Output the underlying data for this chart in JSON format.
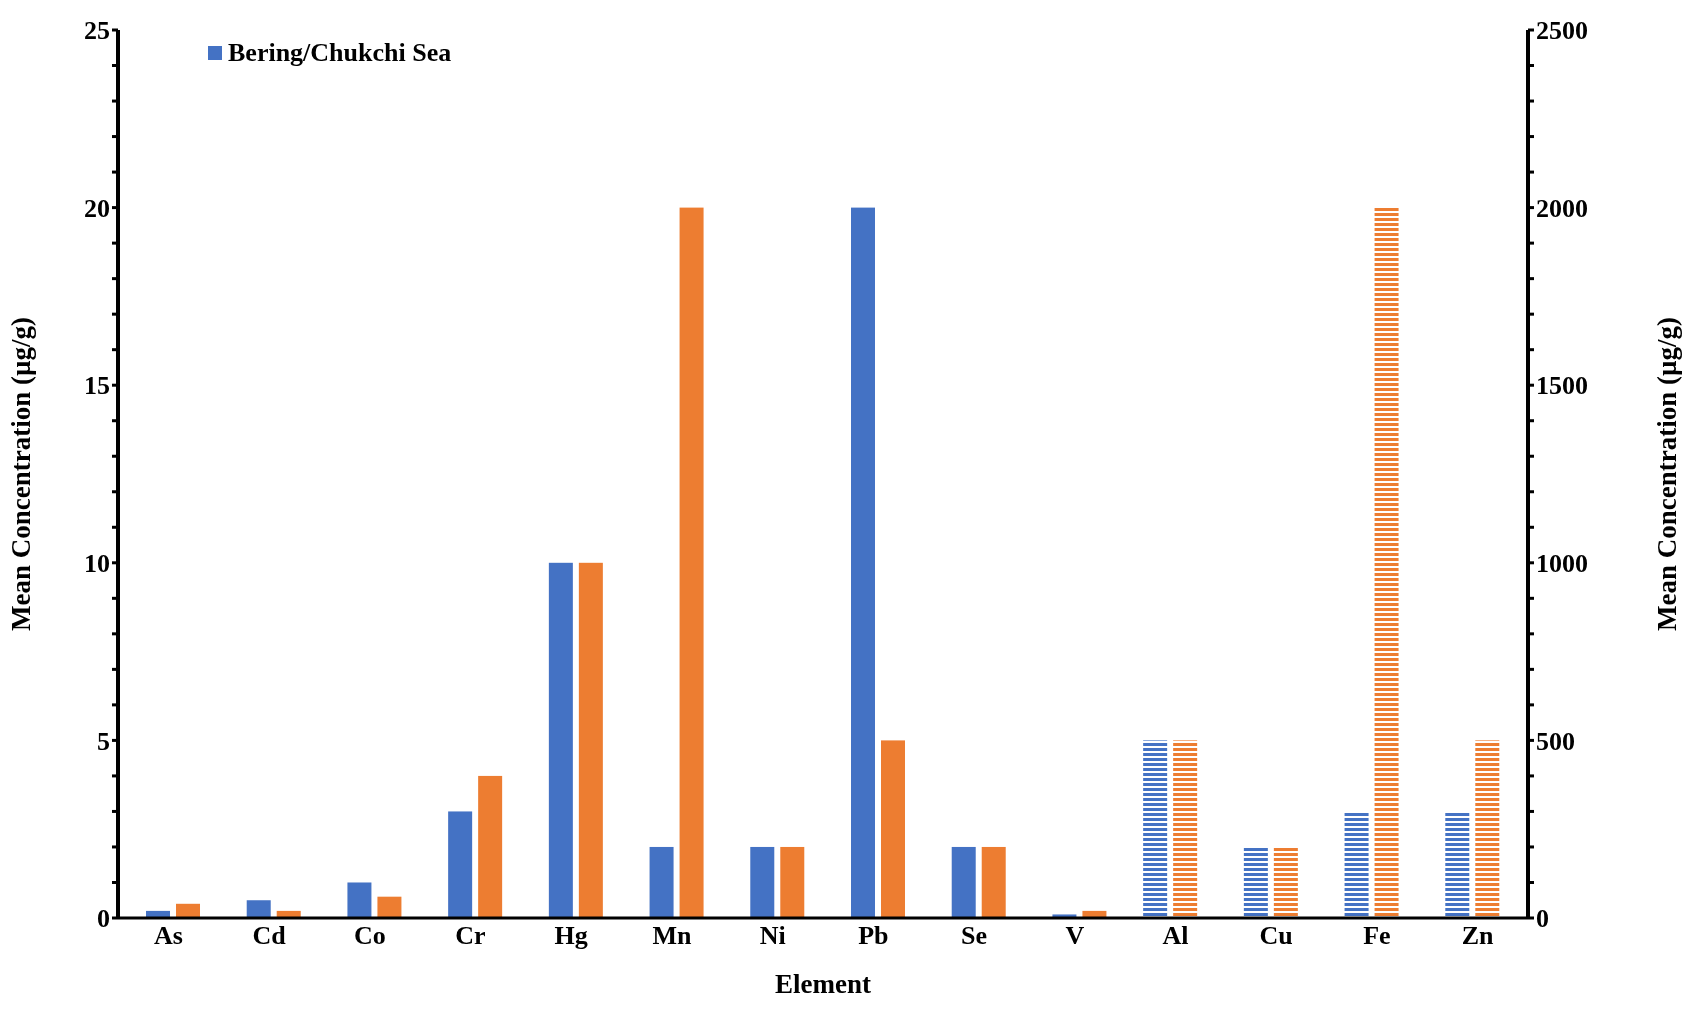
{
  "chart_data": {
    "type": "bar",
    "xlabel": "Element",
    "ylabel": "Mean Concentration (µg/g)",
    "y2label": "Mean Concentration (µg/g)",
    "categories": [
      "As",
      "Cd",
      "Co",
      "Cr",
      "Hg",
      "Mn",
      "Ni",
      "Pb",
      "Se",
      "V",
      "Al",
      "Cu",
      "Fe",
      "Zn"
    ],
    "series": [
      {
        "name": "Bering/Chukchi Sea",
        "color": "#4472c4",
        "values": [
          0.2,
          0.5,
          1,
          3,
          10,
          2,
          2,
          20,
          2,
          0.1,
          null,
          null,
          null,
          null
        ]
      },
      {
        "color": "#ed7d31",
        "values": [
          0.4,
          0.2,
          0.6,
          4,
          10,
          20,
          2,
          5,
          2,
          0.2,
          null,
          null,
          null,
          null
        ]
      },
      {
        "color": "#4472c4",
        "axis": "y2",
        "values": [
          null,
          null,
          null,
          null,
          null,
          null,
          null,
          null,
          null,
          null,
          500,
          200,
          300,
          300
        ]
      },
      {
        "color": "#ed7d31",
        "axis": "y2",
        "values": [
          null,
          null,
          null,
          null,
          null,
          null,
          null,
          null,
          null,
          null,
          500,
          200,
          2000,
          500
        ]
      }
    ],
    "ylim": [
      0,
      25
    ],
    "yticks": [
      0,
      {
        "value": 1,
        "label": null
      },
      {
        "value": 2,
        "label": null
      },
      {
        "value": 3,
        "label": null
      },
      {
        "value": 4,
        "label": null
      },
      5,
      {
        "value": 6,
        "label": null
      },
      {
        "value": 7,
        "label": null
      },
      {
        "value": 8,
        "label": null
      },
      {
        "value": 9,
        "label": null
      },
      10,
      {
        "value": 11,
        "label": null
      },
      {
        "value": 12,
        "label": null
      },
      {
        "value": 13,
        "label": null
      },
      {
        "value": 14,
        "label": null
      },
      15,
      {
        "value": 16,
        "label": null
      },
      {
        "value": 17,
        "label": null
      },
      {
        "value": 18,
        "label": null
      },
      {
        "value": 19,
        "label": null
      },
      20,
      {
        "value": 21,
        "label": null
      },
      {
        "value": 22,
        "label": null
      },
      {
        "value": 23,
        "label": null
      },
      {
        "value": 24,
        "label": null
      },
      25
    ],
    "y2lim": [
      0,
      2500
    ],
    "y2ticks": [
      0,
      {
        "value": 100,
        "label": null
      },
      {
        "value": 200,
        "label": null
      },
      {
        "value": 300,
        "label": null
      },
      {
        "value": 400,
        "label": null
      },
      500,
      {
        "value": 600,
        "label": null
      },
      {
        "value": 700,
        "label": null
      },
      {
        "value": 800,
        "label": null
      },
      {
        "value": 900,
        "label": null
      },
      1000,
      {
        "value": 1100,
        "label": null
      },
      {
        "value": 1200,
        "label": null
      },
      {
        "value": 1300,
        "label": null
      },
      {
        "value": 1400,
        "label": null
      },
      1500,
      {
        "value": 1600,
        "label": null
      },
      {
        "value": 1700,
        "label": null
      },
      {
        "value": 1800,
        "label": null
      },
      {
        "value": 1900,
        "label": null
      },
      2000,
      {
        "value": 2100,
        "label": null
      },
      {
        "value": 2200,
        "label": null
      },
      {
        "value": 2300,
        "label": null
      },
      {
        "value": 2400,
        "label": null
      },
      2500
    ],
    "grid": false,
    "legend": "top left"
  }
}
